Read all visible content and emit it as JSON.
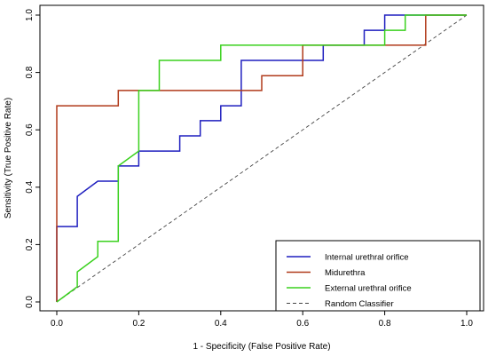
{
  "chart_data": {
    "type": "line",
    "title": "",
    "xlabel": "1 - Specificity (False Positive Rate)",
    "ylabel": "Sensitivity (True Positive Rate)",
    "xlim": [
      0,
      1
    ],
    "ylim": [
      0,
      1
    ],
    "xticks": [
      "0.0",
      "0.2",
      "0.4",
      "0.6",
      "0.8",
      "1.0"
    ],
    "yticks": [
      "0.0",
      "0.2",
      "0.4",
      "0.6",
      "0.8",
      "1.0"
    ],
    "grid": false,
    "legend_position": "bottom-right",
    "series": [
      {
        "name": "Internal urethral orifice",
        "color": "#1f1fbf",
        "style": "solid",
        "x": [
          0,
          0,
          0.05,
          0.05,
          0.1,
          0.15,
          0.15,
          0.2,
          0.2,
          0.3,
          0.3,
          0.35,
          0.35,
          0.4,
          0.4,
          0.45,
          0.45,
          0.65,
          0.65,
          0.75,
          0.75,
          0.8,
          0.8,
          1.0
        ],
        "y": [
          0,
          0.263,
          0.263,
          0.368,
          0.421,
          0.421,
          0.474,
          0.474,
          0.526,
          0.526,
          0.579,
          0.579,
          0.632,
          0.632,
          0.684,
          0.684,
          0.842,
          0.842,
          0.895,
          0.895,
          0.947,
          0.947,
          1.0,
          1.0
        ]
      },
      {
        "name": "Midurethra",
        "color": "#b03a1a",
        "style": "solid",
        "x": [
          0,
          0,
          0.15,
          0.15,
          0.5,
          0.5,
          0.6,
          0.6,
          0.9,
          0.9,
          1.0
        ],
        "y": [
          0,
          0.684,
          0.684,
          0.737,
          0.737,
          0.789,
          0.789,
          0.895,
          0.895,
          1.0,
          1.0
        ]
      },
      {
        "name": "External urethral orifice",
        "color": "#3ad11e",
        "style": "solid",
        "x": [
          0,
          0.05,
          0.05,
          0.1,
          0.1,
          0.15,
          0.15,
          0.2,
          0.2,
          0.25,
          0.25,
          0.4,
          0.4,
          0.8,
          0.8,
          0.85,
          0.85,
          1.0
        ],
        "y": [
          0,
          0.053,
          0.105,
          0.158,
          0.211,
          0.211,
          0.474,
          0.526,
          0.737,
          0.737,
          0.842,
          0.842,
          0.895,
          0.895,
          0.947,
          0.947,
          1.0,
          1.0
        ]
      },
      {
        "name": "Random Classifier",
        "color": "#444444",
        "style": "dashed",
        "x": [
          0,
          1
        ],
        "y": [
          0,
          1
        ]
      }
    ]
  }
}
